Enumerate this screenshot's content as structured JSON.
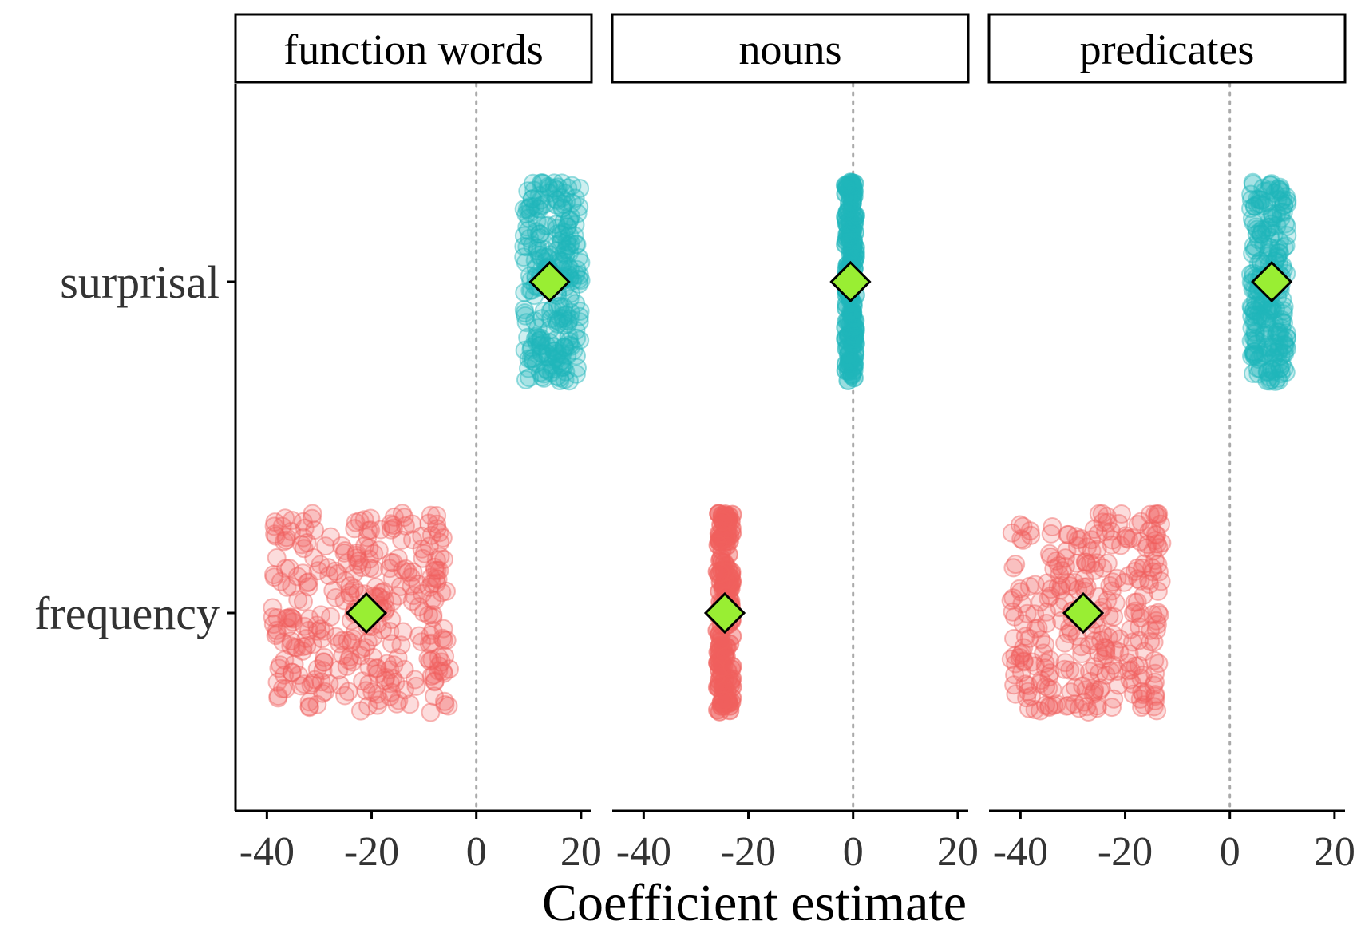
{
  "chart_data": {
    "type": "scatter",
    "title": "",
    "xlabel": "Coefficient estimate",
    "ylabel": "",
    "xlim": [
      -46,
      22
    ],
    "x_ticks": [
      -40,
      -20,
      0,
      20
    ],
    "x_tick_labels": [
      "-40",
      "-20",
      "0",
      "20"
    ],
    "y_categories": [
      "surprisal",
      "frequency"
    ],
    "reference_line_x": 0,
    "colors": {
      "surprisal": "#1fb5bb",
      "frequency": "#f0605e",
      "mean_marker": "#99ee33",
      "mean_marker_stroke": "#000000",
      "reference_line": "#aaaaaa",
      "axis": "#000000",
      "text": "#333333"
    },
    "panels": [
      {
        "name": "function words",
        "series": [
          {
            "name": "surprisal",
            "mean": 14,
            "spread": [
              9,
              20
            ],
            "points_shown": 260
          },
          {
            "name": "frequency",
            "mean": -21,
            "spread": [
              -39,
              -5
            ],
            "points_shown": 320
          }
        ]
      },
      {
        "name": "nouns",
        "series": [
          {
            "name": "surprisal",
            "mean": -0.5,
            "spread": [
              -1.5,
              0.5
            ],
            "points_shown": 160
          },
          {
            "name": "frequency",
            "mean": -24.5,
            "spread": [
              -26,
              -23
            ],
            "points_shown": 160
          }
        ]
      },
      {
        "name": "predicates",
        "series": [
          {
            "name": "surprisal",
            "mean": 8,
            "spread": [
              4,
              11
            ],
            "points_shown": 240
          },
          {
            "name": "frequency",
            "mean": -28,
            "spread": [
              -42,
              -13
            ],
            "points_shown": 300
          }
        ]
      }
    ]
  }
}
